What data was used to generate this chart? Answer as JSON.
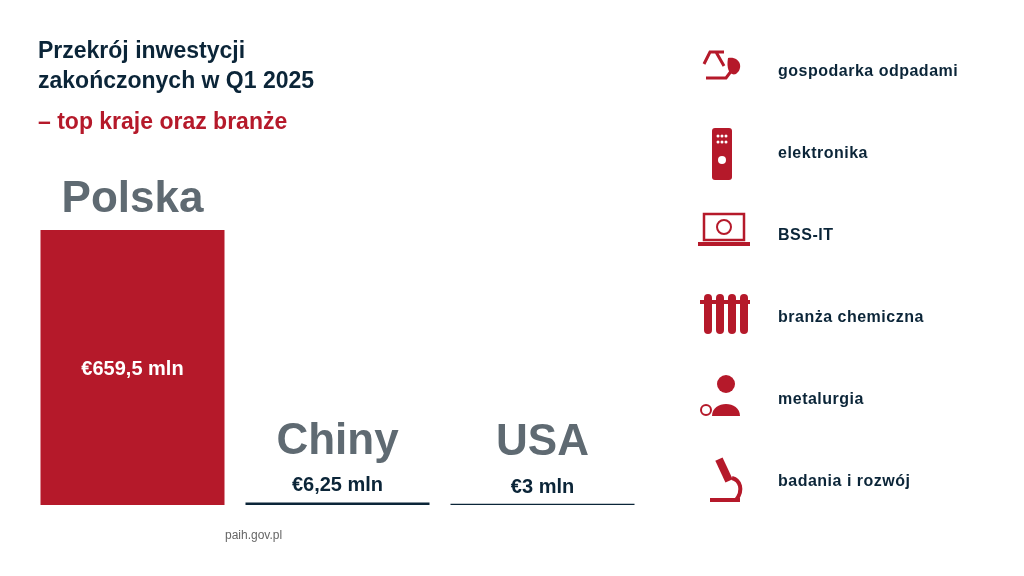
{
  "chart_data": {
    "type": "bar",
    "title": "Przekrój inwestycji zakończonych w Q1 2025",
    "subtitle": "– top kraje oraz branże",
    "categories": [
      "Polska",
      "Chiny",
      "USA"
    ],
    "values": [
      659.5,
      6.25,
      3
    ],
    "colors": [
      "#b5192a",
      "#0b2538",
      "#0b2538"
    ],
    "value_labels": [
      "€659,5 mln",
      "€6,25 mln",
      "€3 mln"
    ],
    "annotations": [
      "gospodarka odpadami",
      "elektronika",
      "BSS-IT",
      "branża chemiczna",
      "metalurgia",
      "badania i rozwój",
      "paih.gov.pl"
    ]
  }
}
